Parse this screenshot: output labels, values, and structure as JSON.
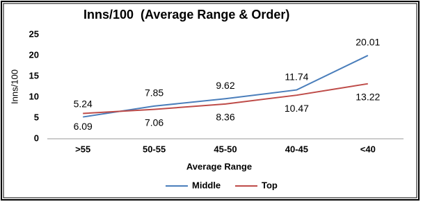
{
  "chart_data": {
    "type": "line",
    "title": "Inns/100  (Average Range & Order)",
    "x_label": "Average Range",
    "y_label": "Inns/100",
    "categories": [
      ">55",
      "50-55",
      "45-50",
      "40-45",
      "<40"
    ],
    "series": [
      {
        "name": "Middle",
        "color": "#4a7ebb",
        "values": [
          5.24,
          7.85,
          9.62,
          11.74,
          20.01
        ]
      },
      {
        "name": "Top",
        "color": "#be4b48",
        "values": [
          6.09,
          7.06,
          8.36,
          10.47,
          13.22
        ]
      }
    ],
    "ylim": [
      0,
      25
    ],
    "yticks": [
      0,
      5,
      10,
      15,
      20,
      25
    ],
    "grid": false
  }
}
